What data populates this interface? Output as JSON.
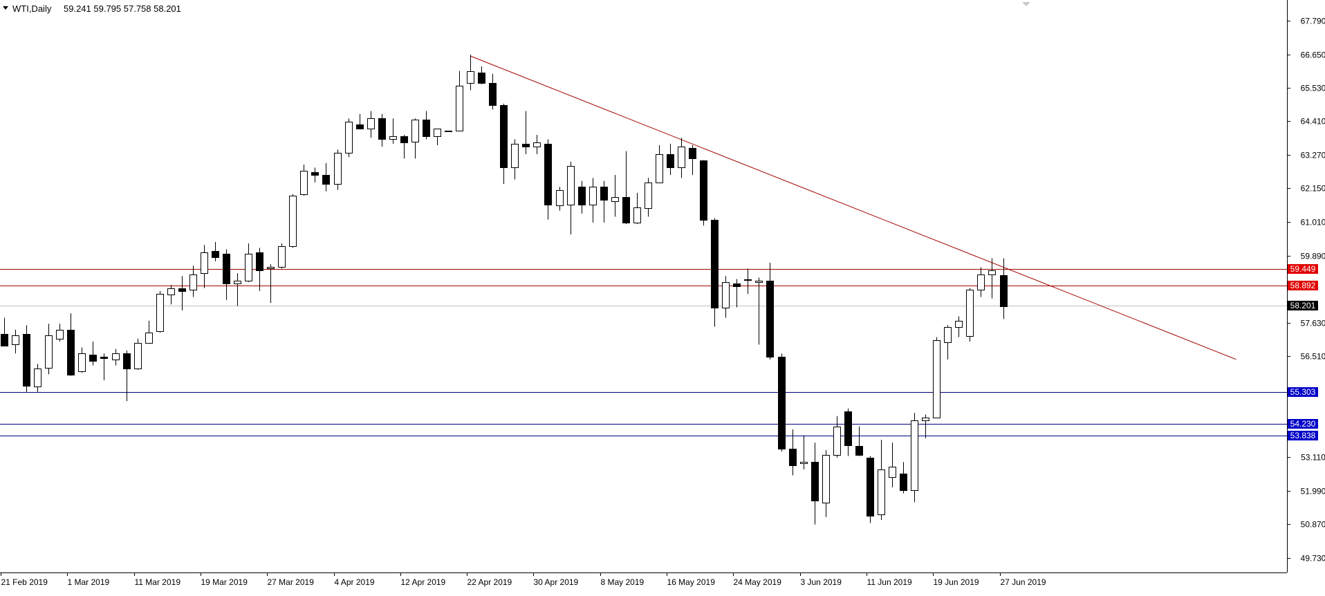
{
  "chart_header": {
    "symbol": "WTI,Daily",
    "ohlc": "59.241 59.795 57.758 58.201"
  },
  "colors": {
    "background": "#ffffff",
    "candle": "#000000",
    "trendline": "#a40000",
    "resistance": "#a40000",
    "support": "#000080",
    "resistance_tag": "#e00000",
    "support_tag": "#0000c8",
    "current_tag": "#000000",
    "current_line": "#c0c0c0"
  },
  "chart_data": {
    "type": "candlestick",
    "symbol": "WTI",
    "timeframe": "Daily",
    "price_axis": {
      "min": 49.4,
      "max": 68.25,
      "ticks": [
        67.79,
        66.65,
        65.53,
        64.41,
        63.27,
        62.15,
        61.01,
        59.89,
        57.63,
        56.51,
        53.11,
        51.99,
        50.87,
        49.73
      ]
    },
    "date_ticks": [
      {
        "i": 0,
        "label": "21 Feb 2019"
      },
      {
        "i": 6,
        "label": "1 Mar 2019"
      },
      {
        "i": 12,
        "label": "11 Mar 2019"
      },
      {
        "i": 18,
        "label": "19 Mar 2019"
      },
      {
        "i": 24,
        "label": "27 Mar 2019"
      },
      {
        "i": 30,
        "label": "4 Apr 2019"
      },
      {
        "i": 36,
        "label": "12 Apr 2019"
      },
      {
        "i": 42,
        "label": "22 Apr 2019"
      },
      {
        "i": 48,
        "label": "30 Apr 2019"
      },
      {
        "i": 54,
        "label": "8 May 2019"
      },
      {
        "i": 60,
        "label": "16 May 2019"
      },
      {
        "i": 66,
        "label": "24 May 2019"
      },
      {
        "i": 72,
        "label": "3 Jun 2019"
      },
      {
        "i": 78,
        "label": "11 Jun 2019"
      },
      {
        "i": 84,
        "label": "19 Jun 2019"
      },
      {
        "i": 90,
        "label": "27 Jun 2019"
      }
    ],
    "candles": [
      {
        "o": 57.25,
        "h": 57.8,
        "l": 56.9,
        "c": 56.85
      },
      {
        "o": 56.9,
        "h": 57.4,
        "l": 56.6,
        "c": 57.2
      },
      {
        "o": 57.25,
        "h": 57.55,
        "l": 55.3,
        "c": 55.5
      },
      {
        "o": 55.5,
        "h": 56.25,
        "l": 55.3,
        "c": 56.1
      },
      {
        "o": 56.1,
        "h": 57.6,
        "l": 55.9,
        "c": 57.2
      },
      {
        "o": 57.1,
        "h": 57.6,
        "l": 57.0,
        "c": 57.4
      },
      {
        "o": 57.4,
        "h": 57.95,
        "l": 55.85,
        "c": 55.9
      },
      {
        "o": 56.0,
        "h": 56.8,
        "l": 55.95,
        "c": 56.6
      },
      {
        "o": 56.55,
        "h": 57.0,
        "l": 56.2,
        "c": 56.35
      },
      {
        "o": 56.5,
        "h": 56.6,
        "l": 55.7,
        "c": 56.45
      },
      {
        "o": 56.4,
        "h": 56.75,
        "l": 56.2,
        "c": 56.6
      },
      {
        "o": 56.6,
        "h": 56.7,
        "l": 55.0,
        "c": 56.1
      },
      {
        "o": 56.1,
        "h": 57.1,
        "l": 56.05,
        "c": 56.95
      },
      {
        "o": 56.95,
        "h": 57.7,
        "l": 56.95,
        "c": 57.3
      },
      {
        "o": 57.35,
        "h": 58.7,
        "l": 57.3,
        "c": 58.6
      },
      {
        "o": 58.6,
        "h": 58.9,
        "l": 58.25,
        "c": 58.8
      },
      {
        "o": 58.8,
        "h": 59.2,
        "l": 58.05,
        "c": 58.7
      },
      {
        "o": 58.75,
        "h": 59.55,
        "l": 58.5,
        "c": 59.25
      },
      {
        "o": 59.3,
        "h": 60.25,
        "l": 58.8,
        "c": 60.0
      },
      {
        "o": 60.05,
        "h": 60.35,
        "l": 59.7,
        "c": 59.85
      },
      {
        "o": 59.95,
        "h": 60.1,
        "l": 58.4,
        "c": 58.95
      },
      {
        "o": 58.95,
        "h": 59.3,
        "l": 58.2,
        "c": 59.05
      },
      {
        "o": 59.05,
        "h": 60.3,
        "l": 59.0,
        "c": 59.95
      },
      {
        "o": 60.0,
        "h": 60.15,
        "l": 58.7,
        "c": 59.4
      },
      {
        "o": 59.45,
        "h": 59.6,
        "l": 58.3,
        "c": 59.5
      },
      {
        "o": 59.5,
        "h": 60.3,
        "l": 59.45,
        "c": 60.2
      },
      {
        "o": 60.2,
        "h": 61.95,
        "l": 60.15,
        "c": 61.9
      },
      {
        "o": 61.95,
        "h": 62.95,
        "l": 61.9,
        "c": 62.75
      },
      {
        "o": 62.7,
        "h": 62.85,
        "l": 62.35,
        "c": 62.6
      },
      {
        "o": 62.6,
        "h": 63.0,
        "l": 62.05,
        "c": 62.3
      },
      {
        "o": 62.3,
        "h": 63.45,
        "l": 62.1,
        "c": 63.35
      },
      {
        "o": 63.35,
        "h": 64.5,
        "l": 63.2,
        "c": 64.4
      },
      {
        "o": 64.3,
        "h": 64.65,
        "l": 64.15,
        "c": 64.15
      },
      {
        "o": 64.15,
        "h": 64.75,
        "l": 63.85,
        "c": 64.5
      },
      {
        "o": 64.5,
        "h": 64.65,
        "l": 63.55,
        "c": 63.8
      },
      {
        "o": 63.8,
        "h": 64.5,
        "l": 63.65,
        "c": 63.9
      },
      {
        "o": 63.9,
        "h": 63.95,
        "l": 63.15,
        "c": 63.7
      },
      {
        "o": 63.7,
        "h": 64.5,
        "l": 63.15,
        "c": 64.45
      },
      {
        "o": 64.45,
        "h": 64.75,
        "l": 63.8,
        "c": 63.9
      },
      {
        "o": 63.9,
        "h": 64.1,
        "l": 63.6,
        "c": 64.15
      },
      {
        "o": 64.1,
        "h": 64.05,
        "l": 64.05,
        "c": 64.08
      },
      {
        "o": 64.1,
        "h": 66.1,
        "l": 64.1,
        "c": 65.6
      },
      {
        "o": 65.7,
        "h": 66.65,
        "l": 65.45,
        "c": 66.1
      },
      {
        "o": 66.05,
        "h": 66.25,
        "l": 65.65,
        "c": 65.7
      },
      {
        "o": 65.7,
        "h": 66.0,
        "l": 64.8,
        "c": 64.95
      },
      {
        "o": 64.95,
        "h": 65.0,
        "l": 62.3,
        "c": 62.85
      },
      {
        "o": 62.85,
        "h": 63.8,
        "l": 62.45,
        "c": 63.65
      },
      {
        "o": 63.65,
        "h": 64.75,
        "l": 63.3,
        "c": 63.55
      },
      {
        "o": 63.55,
        "h": 63.95,
        "l": 63.3,
        "c": 63.7
      },
      {
        "o": 63.65,
        "h": 63.8,
        "l": 61.1,
        "c": 61.6
      },
      {
        "o": 61.6,
        "h": 62.2,
        "l": 61.4,
        "c": 62.1
      },
      {
        "o": 61.6,
        "h": 63.05,
        "l": 60.6,
        "c": 62.9
      },
      {
        "o": 62.2,
        "h": 62.4,
        "l": 61.3,
        "c": 61.6
      },
      {
        "o": 61.6,
        "h": 62.5,
        "l": 61.0,
        "c": 62.2
      },
      {
        "o": 62.2,
        "h": 62.4,
        "l": 61.0,
        "c": 61.75
      },
      {
        "o": 61.7,
        "h": 62.6,
        "l": 61.2,
        "c": 61.85
      },
      {
        "o": 61.85,
        "h": 63.4,
        "l": 60.95,
        "c": 61.0
      },
      {
        "o": 61.0,
        "h": 62.0,
        "l": 60.95,
        "c": 61.5
      },
      {
        "o": 61.5,
        "h": 62.5,
        "l": 61.2,
        "c": 62.35
      },
      {
        "o": 62.35,
        "h": 63.6,
        "l": 62.35,
        "c": 63.3
      },
      {
        "o": 63.3,
        "h": 63.65,
        "l": 62.6,
        "c": 62.85
      },
      {
        "o": 62.85,
        "h": 63.85,
        "l": 62.5,
        "c": 63.55
      },
      {
        "o": 63.5,
        "h": 63.6,
        "l": 62.6,
        "c": 63.15
      },
      {
        "o": 63.1,
        "h": 63.1,
        "l": 60.9,
        "c": 61.1
      },
      {
        "o": 61.1,
        "h": 61.15,
        "l": 57.5,
        "c": 58.15
      },
      {
        "o": 58.15,
        "h": 59.2,
        "l": 57.8,
        "c": 59.0
      },
      {
        "o": 58.95,
        "h": 59.1,
        "l": 58.15,
        "c": 58.85
      },
      {
        "o": 59.1,
        "h": 59.45,
        "l": 58.6,
        "c": 59.1
      },
      {
        "o": 59.0,
        "h": 59.15,
        "l": 56.9,
        "c": 59.05
      },
      {
        "o": 59.05,
        "h": 59.65,
        "l": 56.4,
        "c": 56.5
      },
      {
        "o": 56.5,
        "h": 56.6,
        "l": 53.3,
        "c": 53.4
      },
      {
        "o": 53.4,
        "h": 54.05,
        "l": 52.5,
        "c": 52.85
      },
      {
        "o": 52.9,
        "h": 53.85,
        "l": 52.7,
        "c": 52.95
      },
      {
        "o": 52.95,
        "h": 53.6,
        "l": 50.85,
        "c": 51.65
      },
      {
        "o": 51.6,
        "h": 53.35,
        "l": 51.1,
        "c": 53.2
      },
      {
        "o": 53.2,
        "h": 54.5,
        "l": 53.1,
        "c": 54.15
      },
      {
        "o": 54.65,
        "h": 54.75,
        "l": 53.15,
        "c": 53.5
      },
      {
        "o": 53.5,
        "h": 54.15,
        "l": 53.15,
        "c": 53.2
      },
      {
        "o": 53.1,
        "h": 53.15,
        "l": 50.9,
        "c": 51.15
      },
      {
        "o": 51.2,
        "h": 53.7,
        "l": 51.0,
        "c": 52.7
      },
      {
        "o": 52.45,
        "h": 53.6,
        "l": 52.1,
        "c": 52.8
      },
      {
        "o": 52.55,
        "h": 52.95,
        "l": 51.9,
        "c": 52.0
      },
      {
        "o": 52.0,
        "h": 54.6,
        "l": 51.6,
        "c": 54.35
      },
      {
        "o": 54.35,
        "h": 54.55,
        "l": 53.75,
        "c": 54.45
      },
      {
        "o": 54.45,
        "h": 57.15,
        "l": 54.45,
        "c": 57.05
      },
      {
        "o": 57.0,
        "h": 57.55,
        "l": 56.4,
        "c": 57.5
      },
      {
        "o": 57.5,
        "h": 57.85,
        "l": 57.15,
        "c": 57.7
      },
      {
        "o": 57.2,
        "h": 58.8,
        "l": 57.0,
        "c": 58.75
      },
      {
        "o": 58.75,
        "h": 59.5,
        "l": 58.5,
        "c": 59.25
      },
      {
        "o": 59.25,
        "h": 59.8,
        "l": 58.45,
        "c": 59.4
      },
      {
        "o": 59.24,
        "h": 59.8,
        "l": 57.76,
        "c": 58.2
      }
    ],
    "trendline": {
      "from": {
        "i": 42,
        "price": 66.6
      },
      "to": {
        "i": 111,
        "price": 56.4
      }
    },
    "horizontal_levels": [
      {
        "name": "resistance",
        "price": 59.449,
        "label": "59.449"
      },
      {
        "name": "resistance",
        "price": 58.892,
        "label": "58.892"
      },
      {
        "name": "support",
        "price": 55.303,
        "label": "55.303"
      },
      {
        "name": "support",
        "price": 54.23,
        "label": "54.230"
      },
      {
        "name": "support",
        "price": 53.838,
        "label": "53.838"
      }
    ],
    "current_price": {
      "price": 58.201,
      "label": "58.201"
    }
  }
}
